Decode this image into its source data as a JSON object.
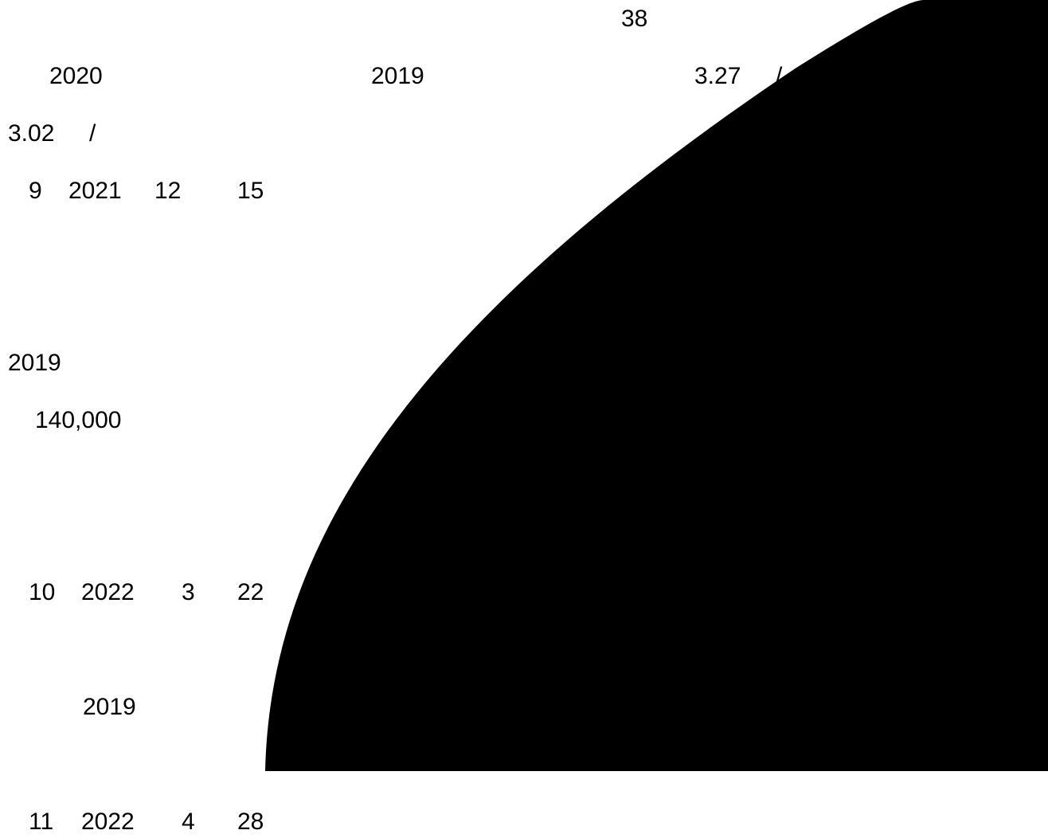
{
  "colors": {
    "background": "#ffffff",
    "text": "#000000",
    "shape_fill": "#000000"
  },
  "lines": {
    "line1": {
      "n": "38"
    },
    "line2": {
      "a": "2020",
      "b": "2019",
      "c": "3.27",
      "d": "/"
    },
    "line3": {
      "a": "3.02",
      "b": "/"
    },
    "line4": {
      "a": "9",
      "b": "2021",
      "c": "12",
      "d": "15"
    },
    "line5": {
      "a": "2019"
    },
    "line6": {
      "a": "140,000"
    },
    "line7": {
      "a": "10",
      "b": "2022",
      "c": "3",
      "d": "22"
    },
    "line8": {
      "a": "2019"
    },
    "line9": {
      "a": "11",
      "b": "2022",
      "c": "4",
      "d": "28"
    }
  }
}
